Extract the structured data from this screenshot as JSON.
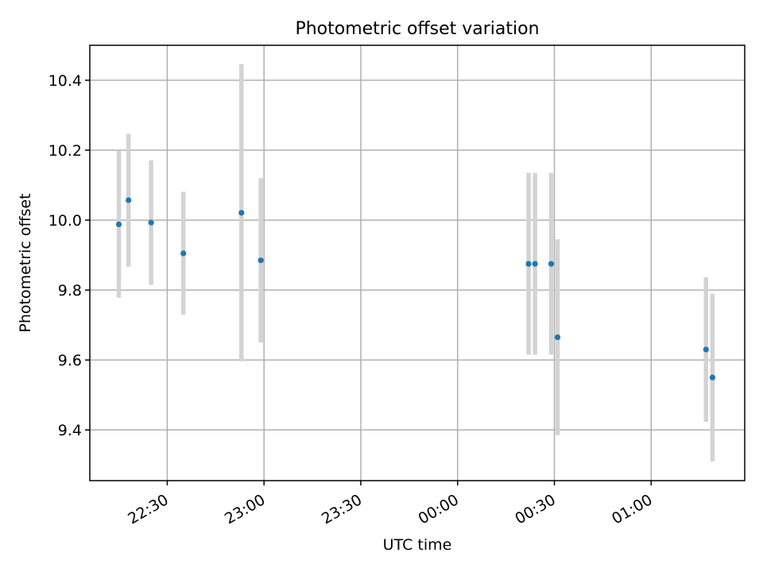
{
  "chart_data": {
    "type": "scatter",
    "title": "Photometric offset variation",
    "xlabel": "UTC time",
    "ylabel": "Photometric offset",
    "x_is_time": true,
    "x_ticks": [
      "22:30",
      "23:00",
      "23:30",
      "00:00",
      "00:30",
      "01:00"
    ],
    "xlim": [
      "22:06",
      "01:29"
    ],
    "y_ticks": [
      "9.4",
      "9.6",
      "9.8",
      "10.0",
      "10.2",
      "10.4"
    ],
    "ylim": [
      9.255,
      10.5
    ],
    "grid": true,
    "colors": {
      "points": "#1f77b4",
      "errorbars": "#d3d3d3"
    },
    "points": [
      {
        "time": "22:15",
        "y": 9.988,
        "err": 0.21
      },
      {
        "time": "22:18",
        "y": 10.057,
        "err": 0.19
      },
      {
        "time": "22:25",
        "y": 9.993,
        "err": 0.178
      },
      {
        "time": "22:35",
        "y": 9.905,
        "err": 0.176
      },
      {
        "time": "22:53",
        "y": 10.021,
        "err": 0.425
      },
      {
        "time": "22:59",
        "y": 9.885,
        "err": 0.235
      },
      {
        "time": "00:22",
        "y": 9.875,
        "err": 0.26
      },
      {
        "time": "00:24",
        "y": 9.875,
        "err": 0.26
      },
      {
        "time": "00:29",
        "y": 9.875,
        "err": 0.26
      },
      {
        "time": "00:31",
        "y": 9.665,
        "err": 0.28
      },
      {
        "time": "01:17",
        "y": 9.63,
        "err": 0.207
      },
      {
        "time": "01:19",
        "y": 9.55,
        "err": 0.24
      }
    ]
  }
}
